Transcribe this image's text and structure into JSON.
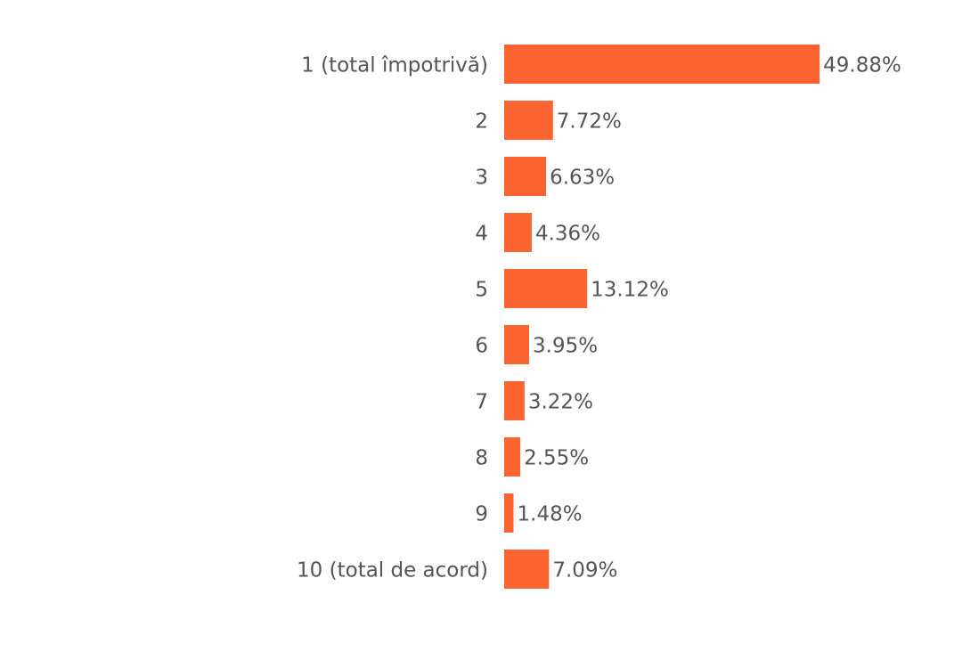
{
  "chart_data": {
    "type": "bar",
    "orientation": "horizontal",
    "categories": [
      "1 (total împotrivă)",
      "2",
      "3",
      "4",
      "5",
      "6",
      "7",
      "8",
      "9",
      "10 (total de acord)"
    ],
    "values": [
      49.88,
      7.72,
      6.63,
      4.36,
      13.12,
      3.95,
      3.22,
      2.55,
      1.48,
      7.09
    ],
    "value_labels": [
      "49.88%",
      "7.72%",
      "6.63%",
      "4.36%",
      "13.12%",
      "3.95%",
      "3.22%",
      "2.55%",
      "1.48%",
      "7.09%"
    ],
    "color": "#fa6431"
  }
}
